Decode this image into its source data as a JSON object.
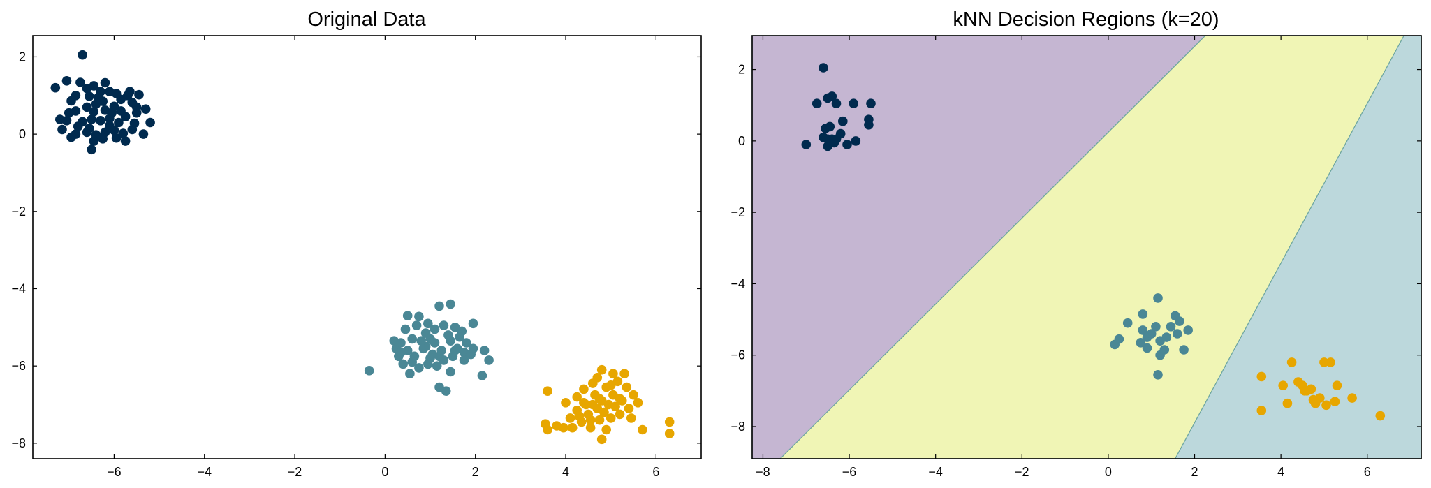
{
  "colors": {
    "class_0": "#002a4e",
    "class_1": "#4a8795",
    "class_2": "#e7a600",
    "region_0": "#c5b6d2",
    "region_1": "#f0f5b5",
    "region_2": "#bcd8dc",
    "region_edge": "#6ea6a0"
  },
  "chart_data": [
    {
      "type": "scatter",
      "title": "Original Data",
      "xlabel": "",
      "ylabel": "",
      "xlim": [
        -7.8,
        7.0
      ],
      "ylim": [
        -8.4,
        2.55
      ],
      "xticks": [
        -6,
        -4,
        -2,
        0,
        2,
        4,
        6
      ],
      "yticks": [
        -8,
        -6,
        -4,
        -2,
        0,
        2
      ],
      "grid": false,
      "series": [
        {
          "color_key": "class_0",
          "points": [
            [
              -6.7,
              2.05
            ],
            [
              -7.3,
              1.2
            ],
            [
              -7.05,
              1.38
            ],
            [
              -6.85,
              1.0
            ],
            [
              -6.75,
              1.34
            ],
            [
              -6.6,
              1.18
            ],
            [
              -6.45,
              1.25
            ],
            [
              -6.3,
              1.1
            ],
            [
              -6.2,
              1.33
            ],
            [
              -6.1,
              1.1
            ],
            [
              -6.35,
              0.95
            ],
            [
              -6.55,
              0.98
            ],
            [
              -6.95,
              0.86
            ],
            [
              -7.0,
              0.55
            ],
            [
              -7.2,
              0.38
            ],
            [
              -7.05,
              0.35
            ],
            [
              -6.85,
              0.6
            ],
            [
              -6.6,
              0.7
            ],
            [
              -6.4,
              0.78
            ],
            [
              -6.2,
              0.62
            ],
            [
              -6.0,
              0.72
            ],
            [
              -5.85,
              0.9
            ],
            [
              -5.7,
              1.0
            ],
            [
              -5.6,
              0.82
            ],
            [
              -5.45,
              1.02
            ],
            [
              -5.3,
              0.65
            ],
            [
              -5.2,
              0.3
            ],
            [
              -5.5,
              0.55
            ],
            [
              -5.75,
              0.45
            ],
            [
              -5.9,
              0.3
            ],
            [
              -6.1,
              0.22
            ],
            [
              -6.3,
              0.35
            ],
            [
              -6.5,
              0.38
            ],
            [
              -6.7,
              0.32
            ],
            [
              -6.55,
              0.15
            ],
            [
              -6.4,
              -0.02
            ],
            [
              -6.2,
              0.05
            ],
            [
              -6.0,
              0.1
            ],
            [
              -5.8,
              0.02
            ],
            [
              -5.6,
              0.12
            ],
            [
              -5.35,
              0.0
            ],
            [
              -6.6,
              0.05
            ],
            [
              -6.85,
              0.0
            ],
            [
              -7.15,
              0.12
            ],
            [
              -6.95,
              -0.08
            ],
            [
              -6.45,
              -0.18
            ],
            [
              -6.5,
              -0.4
            ],
            [
              -6.25,
              -0.12
            ],
            [
              -5.95,
              -0.1
            ],
            [
              -5.75,
              -0.18
            ],
            [
              -5.55,
              0.28
            ],
            [
              -6.05,
              0.55
            ],
            [
              -6.25,
              0.85
            ],
            [
              -5.95,
              1.05
            ],
            [
              -5.65,
              1.1
            ],
            [
              -6.45,
              0.58
            ],
            [
              -6.1,
              0.4
            ],
            [
              -5.5,
              0.7
            ],
            [
              -6.8,
              0.2
            ],
            [
              -5.85,
              0.6
            ]
          ]
        },
        {
          "color_key": "class_1",
          "points": [
            [
              -0.35,
              -6.12
            ],
            [
              0.2,
              -5.35
            ],
            [
              0.25,
              -5.55
            ],
            [
              0.35,
              -5.4
            ],
            [
              0.45,
              -5.05
            ],
            [
              0.5,
              -4.7
            ],
            [
              0.7,
              -4.95
            ],
            [
              0.75,
              -4.72
            ],
            [
              0.9,
              -5.15
            ],
            [
              0.6,
              -5.3
            ],
            [
              0.5,
              -5.6
            ],
            [
              0.3,
              -5.75
            ],
            [
              0.4,
              -5.95
            ],
            [
              0.65,
              -5.75
            ],
            [
              0.85,
              -5.55
            ],
            [
              1.0,
              -5.3
            ],
            [
              1.1,
              -5.05
            ],
            [
              1.2,
              -4.45
            ],
            [
              1.45,
              -4.4
            ],
            [
              1.3,
              -4.95
            ],
            [
              1.55,
              -5.0
            ],
            [
              1.7,
              -5.1
            ],
            [
              1.95,
              -4.9
            ],
            [
              1.8,
              -5.4
            ],
            [
              1.6,
              -5.55
            ],
            [
              1.45,
              -5.35
            ],
            [
              1.25,
              -5.6
            ],
            [
              1.05,
              -5.7
            ],
            [
              0.95,
              -5.95
            ],
            [
              0.75,
              -6.05
            ],
            [
              0.55,
              -6.2
            ],
            [
              1.15,
              -6.0
            ],
            [
              1.3,
              -5.85
            ],
            [
              1.5,
              -5.75
            ],
            [
              1.75,
              -5.65
            ],
            [
              1.95,
              -5.55
            ],
            [
              2.2,
              -5.6
            ],
            [
              2.3,
              -5.85
            ],
            [
              2.15,
              -6.25
            ],
            [
              1.75,
              -5.85
            ],
            [
              1.45,
              -6.15
            ],
            [
              1.2,
              -6.55
            ],
            [
              1.35,
              -6.65
            ],
            [
              0.9,
              -5.5
            ],
            [
              1.1,
              -5.4
            ],
            [
              0.8,
              -5.35
            ],
            [
              0.35,
              -5.65
            ],
            [
              0.6,
              -5.9
            ],
            [
              1.2,
              -5.75
            ],
            [
              1.55,
              -5.6
            ],
            [
              1.0,
              -5.8
            ],
            [
              1.4,
              -5.2
            ],
            [
              0.95,
              -4.9
            ],
            [
              1.65,
              -5.25
            ],
            [
              1.9,
              -5.7
            ]
          ]
        },
        {
          "color_key": "class_2",
          "points": [
            [
              3.6,
              -6.65
            ],
            [
              3.55,
              -7.5
            ],
            [
              3.6,
              -7.65
            ],
            [
              3.8,
              -7.55
            ],
            [
              3.95,
              -7.6
            ],
            [
              4.0,
              -6.95
            ],
            [
              4.1,
              -7.35
            ],
            [
              4.15,
              -7.6
            ],
            [
              4.25,
              -6.8
            ],
            [
              4.25,
              -7.15
            ],
            [
              4.35,
              -7.45
            ],
            [
              4.4,
              -6.6
            ],
            [
              4.45,
              -7.0
            ],
            [
              4.5,
              -7.25
            ],
            [
              4.55,
              -7.6
            ],
            [
              4.6,
              -6.45
            ],
            [
              4.65,
              -6.75
            ],
            [
              4.7,
              -7.1
            ],
            [
              4.75,
              -7.4
            ],
            [
              4.8,
              -6.1
            ],
            [
              4.8,
              -6.9
            ],
            [
              4.85,
              -7.2
            ],
            [
              4.9,
              -6.55
            ],
            [
              4.95,
              -7.0
            ],
            [
              5.0,
              -7.35
            ],
            [
              5.05,
              -6.75
            ],
            [
              5.1,
              -7.05
            ],
            [
              5.15,
              -6.4
            ],
            [
              5.2,
              -7.25
            ],
            [
              5.25,
              -6.9
            ],
            [
              5.3,
              -6.2
            ],
            [
              5.35,
              -6.55
            ],
            [
              5.4,
              -7.1
            ],
            [
              5.45,
              -7.35
            ],
            [
              5.5,
              -6.75
            ],
            [
              5.6,
              -6.95
            ],
            [
              5.7,
              -7.65
            ],
            [
              6.3,
              -7.45
            ],
            [
              6.3,
              -7.75
            ],
            [
              4.8,
              -7.9
            ],
            [
              4.55,
              -7.4
            ],
            [
              4.3,
              -7.3
            ],
            [
              4.7,
              -6.3
            ],
            [
              5.05,
              -6.2
            ],
            [
              4.9,
              -7.65
            ],
            [
              4.6,
              -7.0
            ],
            [
              5.2,
              -6.85
            ],
            [
              4.4,
              -6.95
            ],
            [
              5.0,
              -6.5
            ],
            [
              4.75,
              -6.85
            ]
          ]
        }
      ]
    },
    {
      "type": "scatter",
      "title": "kNN Decision Regions (k=20)",
      "xlabel": "",
      "ylabel": "",
      "xlim": [
        -8.25,
        7.25
      ],
      "ylim": [
        -8.9,
        2.95
      ],
      "xticks": [
        -8,
        -6,
        -4,
        -2,
        0,
        2,
        4,
        6
      ],
      "yticks": [
        -8,
        -6,
        -4,
        -2,
        0,
        2
      ],
      "grid": false,
      "regions": {
        "region_0": [
          [
            -8.25,
            2.95
          ],
          [
            2.25,
            2.95
          ],
          [
            -7.6,
            -8.9
          ],
          [
            -8.25,
            -8.9
          ]
        ],
        "region_1": [
          [
            2.25,
            2.95
          ],
          [
            6.85,
            2.95
          ],
          [
            1.55,
            -8.9
          ],
          [
            -7.6,
            -8.9
          ]
        ],
        "region_2": [
          [
            6.85,
            2.95
          ],
          [
            7.25,
            2.95
          ],
          [
            7.25,
            -8.9
          ],
          [
            1.55,
            -8.9
          ]
        ]
      },
      "series": [
        {
          "color_key": "class_0",
          "points": [
            [
              -6.6,
              2.05
            ],
            [
              -6.5,
              1.2
            ],
            [
              -6.4,
              1.25
            ],
            [
              -6.75,
              1.05
            ],
            [
              -6.3,
              1.05
            ],
            [
              -5.9,
              1.05
            ],
            [
              -5.5,
              1.05
            ],
            [
              -5.55,
              0.6
            ],
            [
              -5.55,
              0.45
            ],
            [
              -6.15,
              0.55
            ],
            [
              -6.55,
              0.35
            ],
            [
              -6.45,
              0.4
            ],
            [
              -6.6,
              0.1
            ],
            [
              -6.5,
              0.05
            ],
            [
              -6.4,
              0.05
            ],
            [
              -6.3,
              0.05
            ],
            [
              -6.2,
              0.2
            ],
            [
              -6.05,
              -0.1
            ],
            [
              -5.85,
              0.0
            ],
            [
              -6.5,
              -0.15
            ],
            [
              -6.35,
              -0.05
            ],
            [
              -7.0,
              -0.1
            ]
          ]
        },
        {
          "color_key": "class_1",
          "points": [
            [
              1.15,
              -4.4
            ],
            [
              0.8,
              -4.85
            ],
            [
              0.15,
              -5.7
            ],
            [
              0.25,
              -5.55
            ],
            [
              0.45,
              -5.1
            ],
            [
              0.8,
              -5.3
            ],
            [
              0.9,
              -5.5
            ],
            [
              0.9,
              -5.8
            ],
            [
              1.0,
              -5.4
            ],
            [
              1.1,
              -5.2
            ],
            [
              1.2,
              -5.6
            ],
            [
              1.2,
              -6.0
            ],
            [
              1.3,
              -5.85
            ],
            [
              1.35,
              -5.5
            ],
            [
              1.45,
              -5.2
            ],
            [
              1.55,
              -4.9
            ],
            [
              1.65,
              -5.05
            ],
            [
              1.6,
              -5.4
            ],
            [
              1.75,
              -5.85
            ],
            [
              1.85,
              -5.3
            ],
            [
              0.75,
              -5.65
            ],
            [
              1.15,
              -6.55
            ]
          ]
        },
        {
          "color_key": "class_2",
          "points": [
            [
              3.55,
              -6.6
            ],
            [
              3.55,
              -7.55
            ],
            [
              4.05,
              -6.85
            ],
            [
              4.15,
              -7.35
            ],
            [
              4.25,
              -6.2
            ],
            [
              4.4,
              -6.75
            ],
            [
              4.5,
              -6.85
            ],
            [
              4.55,
              -7.0
            ],
            [
              4.7,
              -6.95
            ],
            [
              4.75,
              -7.25
            ],
            [
              4.8,
              -7.35
            ],
            [
              4.9,
              -7.2
            ],
            [
              5.0,
              -6.2
            ],
            [
              5.05,
              -7.4
            ],
            [
              5.15,
              -6.2
            ],
            [
              5.25,
              -7.3
            ],
            [
              5.3,
              -6.85
            ],
            [
              5.65,
              -7.2
            ],
            [
              6.3,
              -7.7
            ],
            [
              4.6,
              -7.0
            ]
          ]
        }
      ]
    }
  ]
}
